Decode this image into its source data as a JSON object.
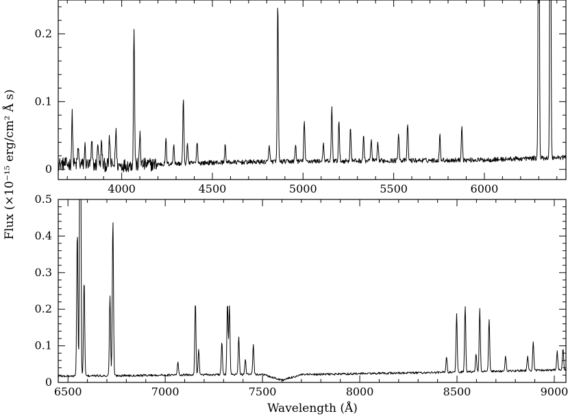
{
  "chart_data": [
    {
      "type": "line",
      "xlim": [
        3650,
        6450
      ],
      "ylim": [
        -0.015,
        0.25
      ],
      "xticks": [
        4000,
        4500,
        5000,
        5500,
        6000
      ],
      "yticks": [
        0,
        0.1,
        0.2
      ],
      "xtick_labels": [
        "4000",
        "4500",
        "5000",
        "5500",
        "6000"
      ],
      "ytick_labels": [
        "0",
        "0.1",
        "0.2"
      ],
      "continuum": [
        [
          3650,
          0.008
        ],
        [
          4000,
          0.006
        ],
        [
          4500,
          0.01
        ],
        [
          5000,
          0.012
        ],
        [
          5500,
          0.013
        ],
        [
          6000,
          0.014
        ],
        [
          6450,
          0.018
        ]
      ],
      "lines": [
        {
          "x": 3727,
          "y": 0.072,
          "w": 3
        },
        {
          "x": 3760,
          "y": 0.025,
          "w": 3
        },
        {
          "x": 3797,
          "y": 0.027,
          "w": 3
        },
        {
          "x": 3835,
          "y": 0.032,
          "w": 3
        },
        {
          "x": 3869,
          "y": 0.035,
          "w": 3
        },
        {
          "x": 3889,
          "y": 0.033,
          "w": 3
        },
        {
          "x": 3933,
          "y": 0.04,
          "w": 3
        },
        {
          "x": 3968,
          "y": 0.055,
          "w": 3
        },
        {
          "x": 4068,
          "y": 0.205,
          "w": 3
        },
        {
          "x": 4101,
          "y": 0.048,
          "w": 3
        },
        {
          "x": 4244,
          "y": 0.036,
          "w": 3
        },
        {
          "x": 4287,
          "y": 0.03,
          "w": 3
        },
        {
          "x": 4340,
          "y": 0.095,
          "w": 3
        },
        {
          "x": 4363,
          "y": 0.03,
          "w": 3
        },
        {
          "x": 4416,
          "y": 0.033,
          "w": 3
        },
        {
          "x": 4571,
          "y": 0.026,
          "w": 3
        },
        {
          "x": 4814,
          "y": 0.025,
          "w": 3
        },
        {
          "x": 4861,
          "y": 0.236,
          "w": 3
        },
        {
          "x": 4959,
          "y": 0.025,
          "w": 3
        },
        {
          "x": 5007,
          "y": 0.06,
          "w": 3
        },
        {
          "x": 5112,
          "y": 0.025,
          "w": 3
        },
        {
          "x": 5159,
          "y": 0.08,
          "w": 3
        },
        {
          "x": 5198,
          "y": 0.058,
          "w": 3
        },
        {
          "x": 5262,
          "y": 0.05,
          "w": 3
        },
        {
          "x": 5334,
          "y": 0.036,
          "w": 3
        },
        {
          "x": 5376,
          "y": 0.032,
          "w": 3
        },
        {
          "x": 5413,
          "y": 0.025,
          "w": 3
        },
        {
          "x": 5527,
          "y": 0.043,
          "w": 3
        },
        {
          "x": 5577,
          "y": 0.055,
          "w": 3
        },
        {
          "x": 5755,
          "y": 0.037,
          "w": 3
        },
        {
          "x": 5876,
          "y": 0.052,
          "w": 3
        },
        {
          "x": 6300,
          "y": 0.6,
          "w": 3
        },
        {
          "x": 6364,
          "y": 0.6,
          "w": 3
        }
      ]
    },
    {
      "type": "line",
      "xlim": [
        6450,
        9060
      ],
      "ylim": [
        0,
        0.5
      ],
      "xticks": [
        6500,
        7000,
        7500,
        8000,
        8500,
        9000
      ],
      "yticks": [
        0,
        0.1,
        0.2,
        0.3,
        0.4,
        0.5
      ],
      "xtick_labels": [
        "6500",
        "7000",
        "7500",
        "8000",
        "8500",
        "9000"
      ],
      "ytick_labels": [
        "0",
        "0.1",
        "0.2",
        "0.3",
        "0.4",
        "0.5"
      ],
      "xlabel": "Wavelength (Å)",
      "continuum": [
        [
          6450,
          0.017
        ],
        [
          7000,
          0.02
        ],
        [
          7500,
          0.022
        ],
        [
          7600,
          0.006
        ],
        [
          7700,
          0.021
        ],
        [
          8000,
          0.024
        ],
        [
          8500,
          0.028
        ],
        [
          9060,
          0.035
        ]
      ],
      "lines": [
        {
          "x": 6548,
          "y": 0.4,
          "w": 3
        },
        {
          "x": 6563,
          "y": 1.2,
          "w": 3
        },
        {
          "x": 6583,
          "y": 0.265,
          "w": 3
        },
        {
          "x": 6716,
          "y": 0.22,
          "w": 3
        },
        {
          "x": 6731,
          "y": 0.425,
          "w": 3
        },
        {
          "x": 7065,
          "y": 0.035,
          "w": 3
        },
        {
          "x": 7155,
          "y": 0.2,
          "w": 3
        },
        {
          "x": 7172,
          "y": 0.068,
          "w": 3
        },
        {
          "x": 7291,
          "y": 0.09,
          "w": 3
        },
        {
          "x": 7320,
          "y": 0.2,
          "w": 3
        },
        {
          "x": 7330,
          "y": 0.19,
          "w": 3
        },
        {
          "x": 7378,
          "y": 0.105,
          "w": 3
        },
        {
          "x": 7412,
          "y": 0.04,
          "w": 3
        },
        {
          "x": 7453,
          "y": 0.082,
          "w": 3
        },
        {
          "x": 8446,
          "y": 0.045,
          "w": 3
        },
        {
          "x": 8498,
          "y": 0.16,
          "w": 3
        },
        {
          "x": 8542,
          "y": 0.18,
          "w": 3
        },
        {
          "x": 8598,
          "y": 0.05,
          "w": 3
        },
        {
          "x": 8617,
          "y": 0.17,
          "w": 3
        },
        {
          "x": 8665,
          "y": 0.145,
          "w": 3
        },
        {
          "x": 8750,
          "y": 0.04,
          "w": 3
        },
        {
          "x": 8863,
          "y": 0.04,
          "w": 3
        },
        {
          "x": 8892,
          "y": 0.08,
          "w": 3
        },
        {
          "x": 9015,
          "y": 0.05,
          "w": 3
        },
        {
          "x": 9045,
          "y": 0.06,
          "w": 3
        }
      ]
    }
  ],
  "figure": {
    "ylabel": "Flux (×10⁻¹⁵ erg/cm² Å s)"
  }
}
